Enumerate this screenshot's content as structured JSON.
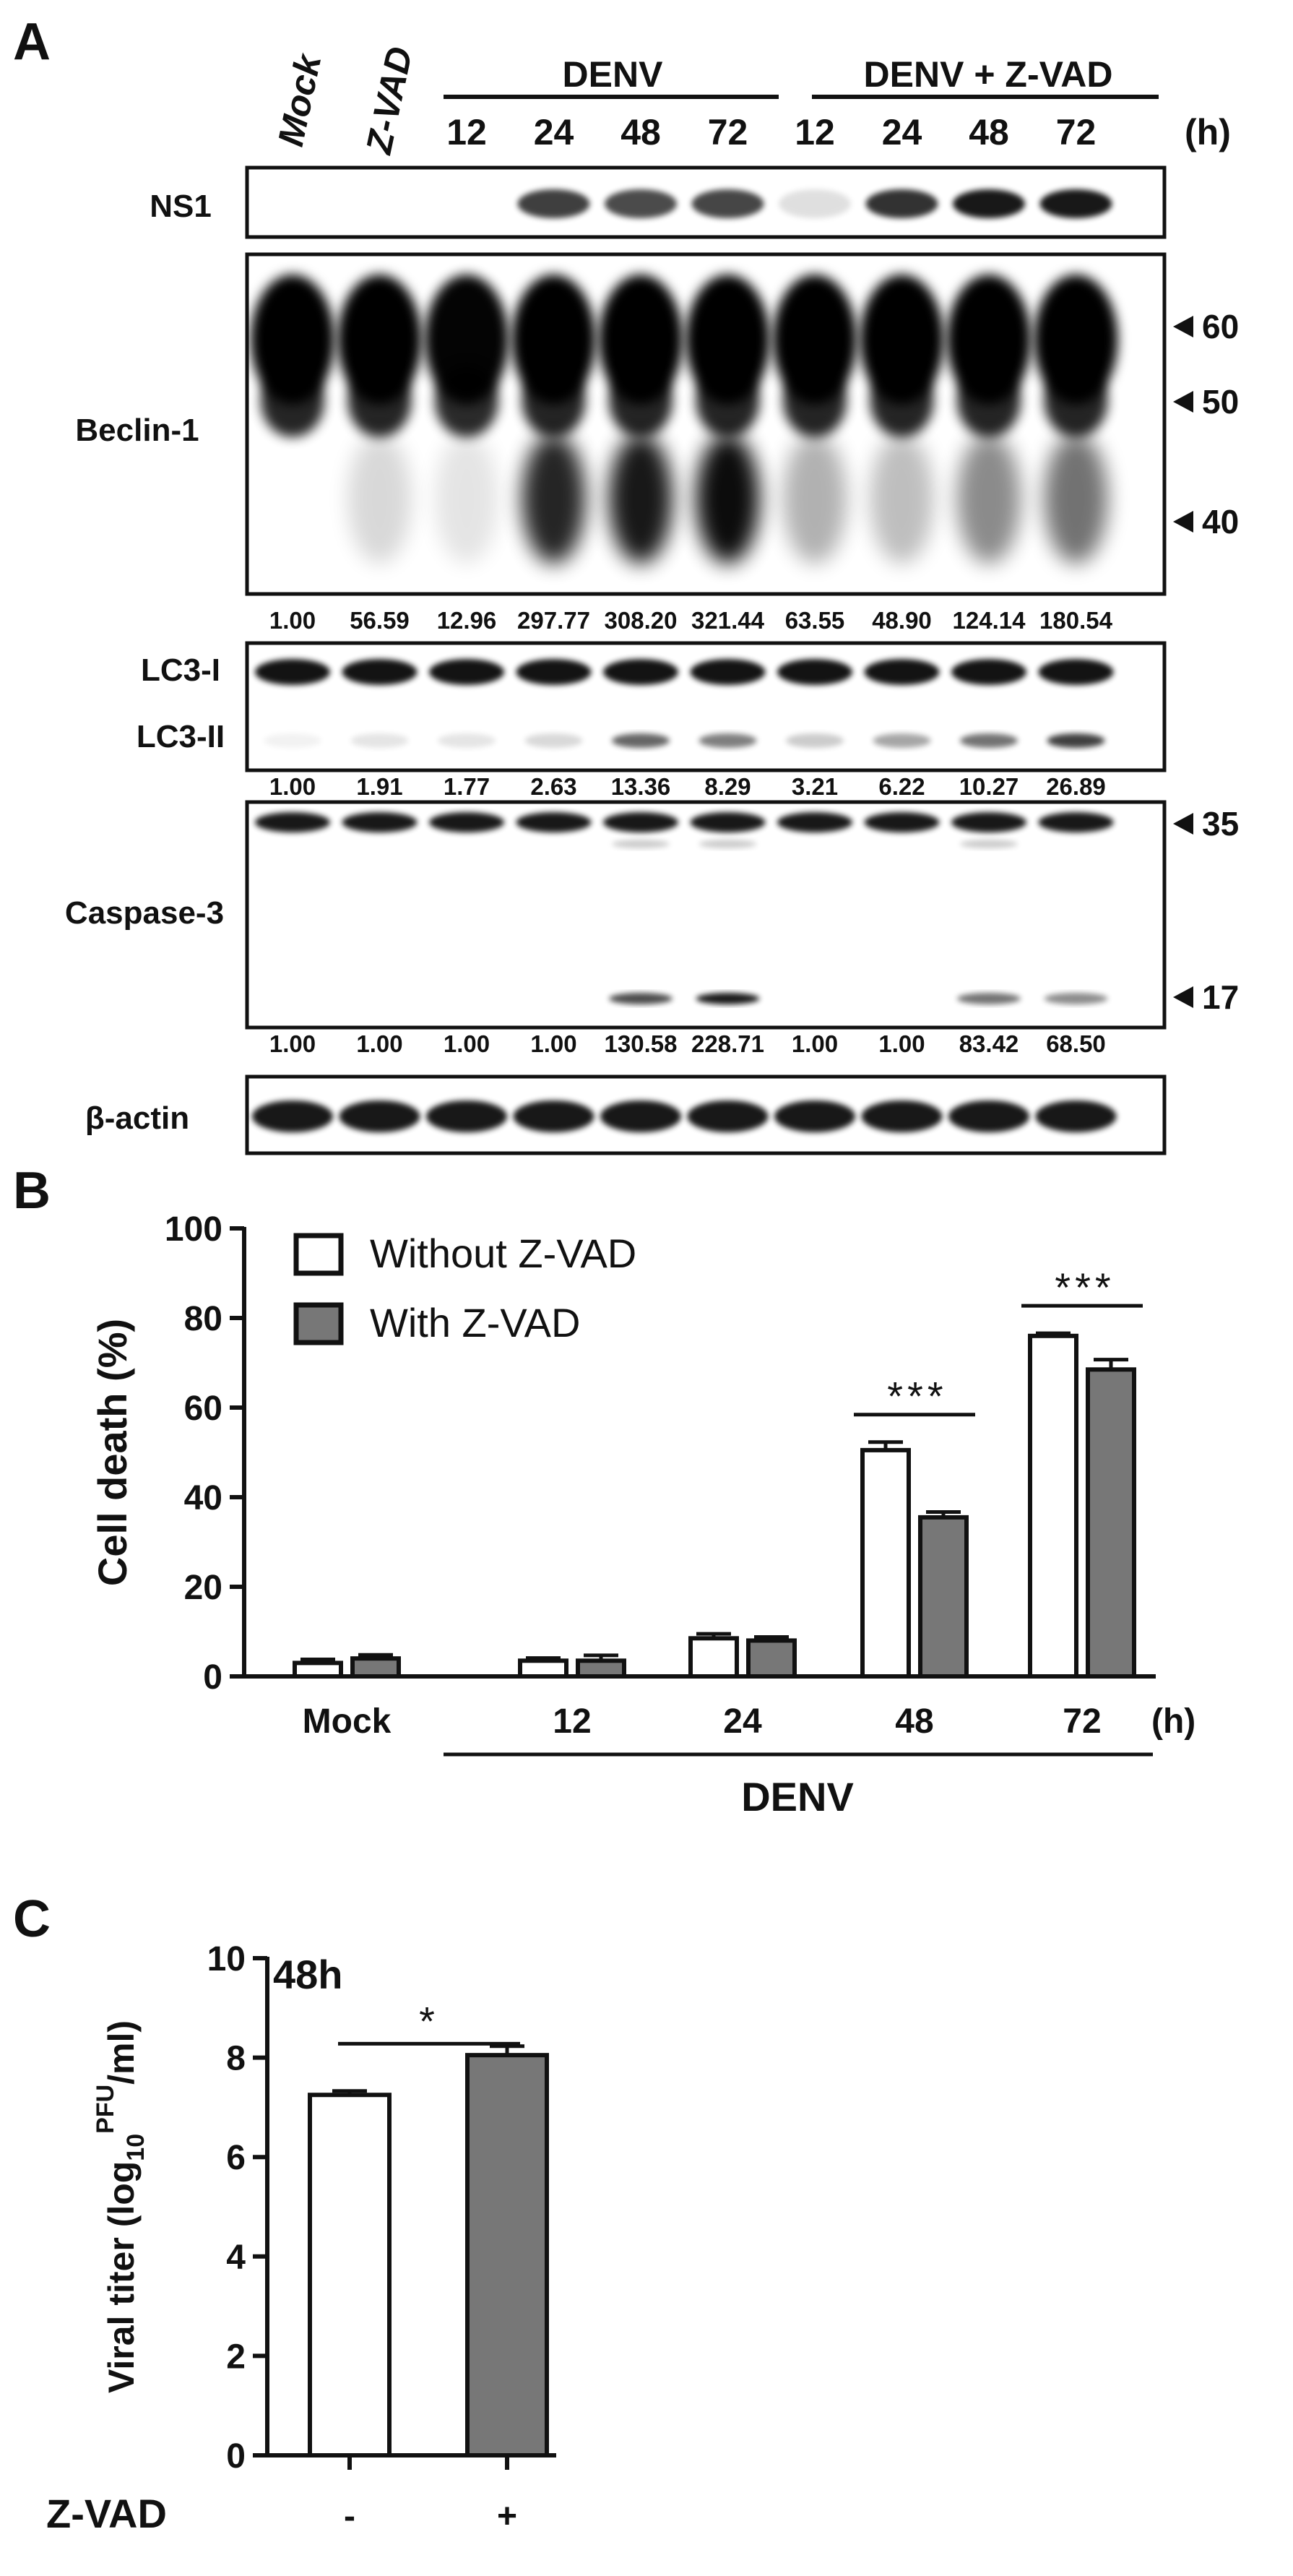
{
  "panel_a": {
    "letter": "A",
    "lane_labels": [
      "Mock",
      "Z-VAD"
    ],
    "group_labels": {
      "denv": "DENV",
      "denv_zvad": "DENV + Z-VAD"
    },
    "time_labels": [
      "12",
      "24",
      "48",
      "72",
      "12",
      "24",
      "48",
      "72"
    ],
    "hours_unit": "(h)",
    "blots": {
      "ns1": "NS1",
      "beclin": "Beclin-1",
      "lc3_i": "LC3-I",
      "lc3_ii": "LC3-II",
      "caspase": "Caspase-3",
      "actin": "β-actin"
    },
    "mw_markers": {
      "beclin": [
        "60",
        "50",
        "40"
      ],
      "caspase": [
        "35",
        "17"
      ]
    },
    "quant": {
      "beclin": [
        "1.00",
        "56.59",
        "12.96",
        "297.77",
        "308.20",
        "321.44",
        "63.55",
        "48.90",
        "124.14",
        "180.54"
      ],
      "lc3": [
        "1.00",
        "1.91",
        "1.77",
        "2.63",
        "13.36",
        "8.29",
        "3.21",
        "6.22",
        "10.27",
        "26.89"
      ],
      "caspase": [
        "1.00",
        "1.00",
        "1.00",
        "1.00",
        "130.58",
        "228.71",
        "1.00",
        "1.00",
        "83.42",
        "68.50"
      ]
    }
  },
  "colors": {
    "without": "#ffffff",
    "with": "#777777",
    "ink": "#111111"
  },
  "chart_data": [
    {
      "panel": "B",
      "type": "bar",
      "ylabel": "Cell death (%)",
      "ylim": [
        0,
        100
      ],
      "yticks": [
        "0",
        "20",
        "40",
        "60",
        "80",
        "100"
      ],
      "categories": [
        "Mock",
        "12",
        "24",
        "48",
        "72"
      ],
      "hours_unit": "(h)",
      "group_label": "DENV",
      "series": [
        {
          "name": "Without Z-VAD",
          "values": [
            3,
            3.5,
            8.5,
            50.5,
            76
          ],
          "errors": [
            0.8,
            0.6,
            1.0,
            1.8,
            0.6
          ]
        },
        {
          "name": "With Z-VAD",
          "values": [
            4,
            3.5,
            8,
            35.5,
            68.5
          ],
          "errors": [
            0.8,
            1.2,
            0.8,
            1.2,
            2.2
          ]
        }
      ],
      "significance": [
        {
          "category": "48",
          "label": "***"
        },
        {
          "category": "72",
          "label": "***"
        }
      ],
      "legend": "top-left"
    },
    {
      "panel": "C",
      "type": "bar",
      "ylabel": "Viral titer (log10PFU/ml)",
      "ylabel_parts": {
        "pre": "Viral titer (log",
        "sub": "10",
        "sup": "PFU",
        "post": "/ml)"
      },
      "annotation": "48h",
      "ylim": [
        0,
        10
      ],
      "yticks": [
        "0",
        "2",
        "4",
        "6",
        "8",
        "10"
      ],
      "xlabel": "Z-VAD",
      "categories": [
        "-",
        "+"
      ],
      "values": [
        7.25,
        8.05
      ],
      "errors": [
        0.08,
        0.18
      ],
      "significance": "*"
    }
  ]
}
